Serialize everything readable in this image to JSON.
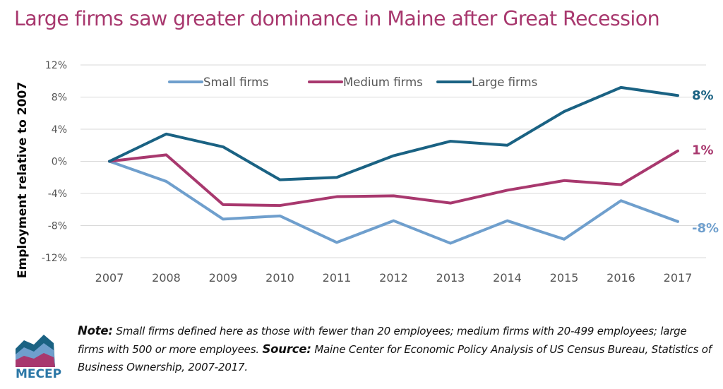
{
  "title": "Large firms saw greater dominance in Maine after Great Recession",
  "note": {
    "note_label": "Note:",
    "note_text": "Small firms defined here as those with fewer than 20 employees; medium firms with  20-499 employees; large firms with 500 or more employees.",
    "source_label": "Source:",
    "source_text": "Maine Center for Economic Policy Analysis of US Census Bureau, Statistics of Business Ownership, 2007-2017."
  },
  "logo": {
    "text": "MECEP"
  },
  "colors": {
    "small": "#6f9fcd",
    "medium": "#a8386e",
    "large": "#1a6283",
    "title": "#a8386e"
  },
  "chart_data": {
    "type": "line",
    "title": "Large firms saw greater dominance in Maine after Great Recession",
    "xlabel": "",
    "ylabel": "Employment relative to 2007",
    "x": [
      "2007",
      "2008",
      "2009",
      "2010",
      "2011",
      "2012",
      "2013",
      "2014",
      "2015",
      "2016",
      "2017"
    ],
    "ylim": [
      -12,
      12
    ],
    "yticks": [
      -12,
      -8,
      -4,
      0,
      4,
      8,
      12
    ],
    "ytick_labels": [
      "-12%",
      "-8%",
      "-4%",
      "0%",
      "4%",
      "8%",
      "12%"
    ],
    "grid": true,
    "legend_position": "top",
    "series": [
      {
        "name": "Small firms",
        "color": "#6f9fcd",
        "values": [
          0,
          -2.5,
          -7.2,
          -6.8,
          -10.1,
          -7.4,
          -10.2,
          -7.4,
          -9.7,
          -4.9,
          -7.5
        ],
        "end_label": "-8%"
      },
      {
        "name": "Medium firms",
        "color": "#a8386e",
        "values": [
          0,
          0.8,
          -5.4,
          -5.5,
          -4.4,
          -4.3,
          -5.2,
          -3.6,
          -2.4,
          -2.9,
          1.3
        ],
        "end_label": "1%"
      },
      {
        "name": "Large firms",
        "color": "#1a6283",
        "values": [
          0,
          3.4,
          1.8,
          -2.3,
          -2.0,
          0.7,
          2.5,
          2.0,
          6.2,
          9.2,
          8.2
        ],
        "end_label": "8%"
      }
    ]
  }
}
